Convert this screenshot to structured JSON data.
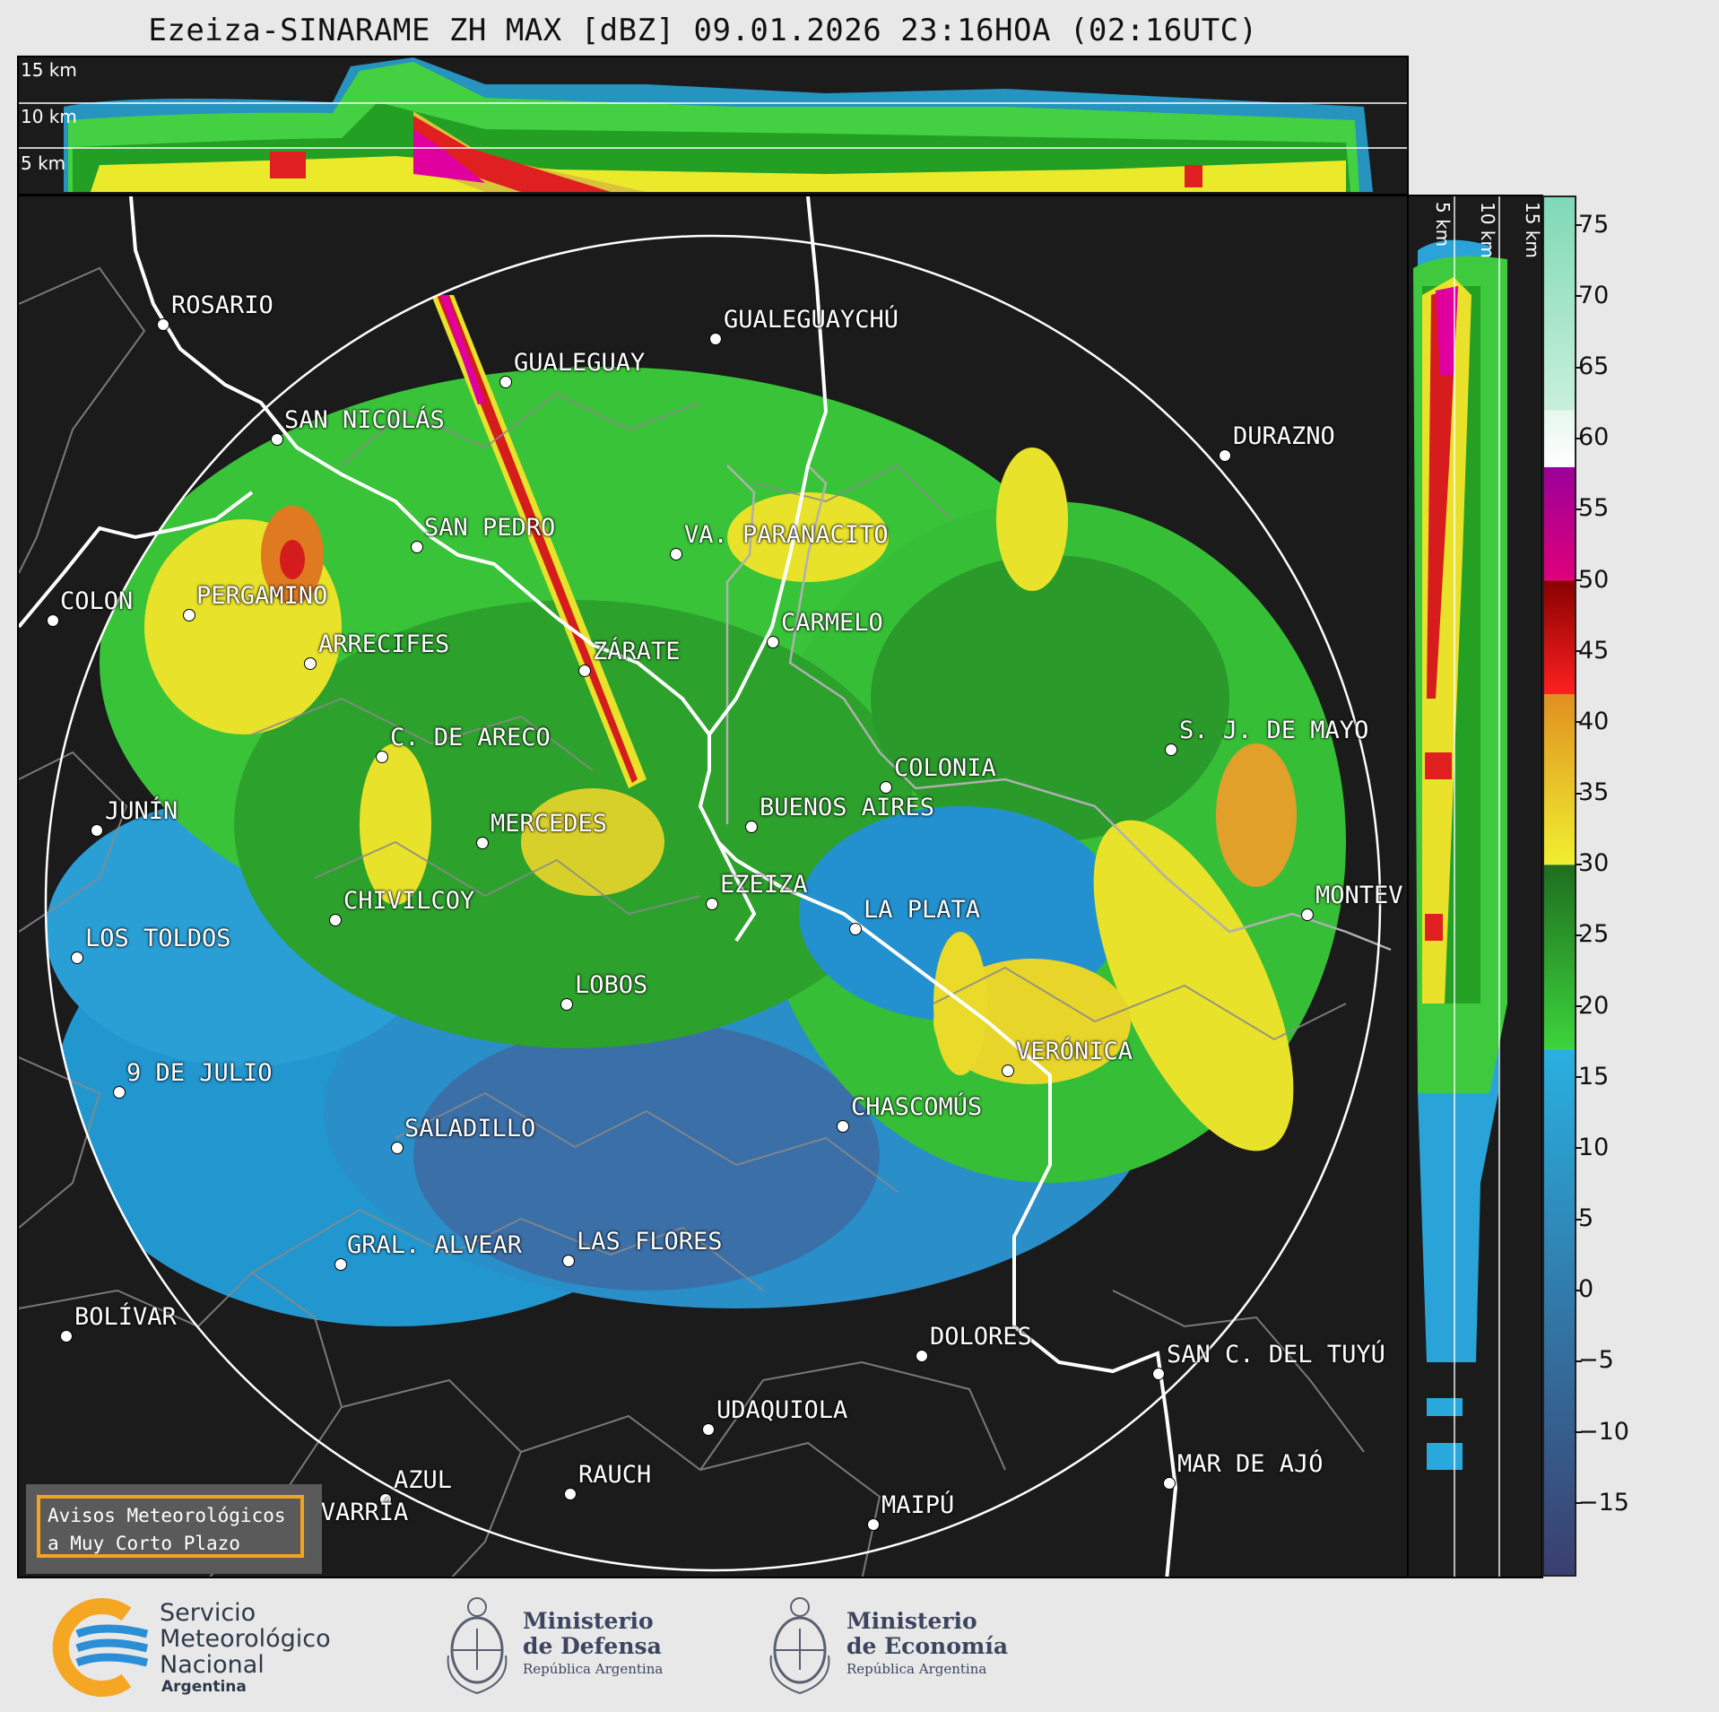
{
  "title": "Ezeiza-SINARAME ZH MAX [dBZ] 09.01.2026 23:16HOA (02:16UTC)",
  "top_panel": {
    "height_labels": [
      "15 km",
      "10 km",
      "5 km"
    ]
  },
  "side_panel": {
    "height_labels": [
      "5 km",
      "10 km",
      "15 km"
    ]
  },
  "colorbar": {
    "unit": "dBZ",
    "ticks": [
      "75",
      "70",
      "65",
      "60",
      "55",
      "50",
      "45",
      "40",
      "35",
      "30",
      "25",
      "20",
      "15",
      "10",
      "5",
      "0",
      "−5",
      "−10",
      "−15"
    ],
    "range": [
      -20,
      77
    ],
    "segments": [
      {
        "from": -20,
        "to": 17,
        "color_start": "#3a3f6e",
        "color_end": "#29b0e0"
      },
      {
        "from": 17,
        "to": 30,
        "color_start": "#3cd43c",
        "color_end": "#1f6e1f"
      },
      {
        "from": 30,
        "to": 42,
        "color_start": "#f0f030",
        "color_end": "#e09020"
      },
      {
        "from": 42,
        "to": 50,
        "color_start": "#ff2020",
        "color_end": "#8a0000"
      },
      {
        "from": 50,
        "to": 58,
        "color_start": "#e0007a",
        "color_end": "#9a009a"
      },
      {
        "from": 58,
        "to": 62,
        "color_start": "#ffffff",
        "color_end": "#e6f7ee"
      },
      {
        "from": 62,
        "to": 77,
        "color_start": "#c8f0dc",
        "color_end": "#7fd9b6"
      }
    ]
  },
  "cities": [
    {
      "name": "ROSARIO"
    },
    {
      "name": "GUALEGUAYCHÚ"
    },
    {
      "name": "GUALEGUAY"
    },
    {
      "name": "SAN NICOLÁS"
    },
    {
      "name": "DURAZNO"
    },
    {
      "name": "SAN PEDRO"
    },
    {
      "name": "VA. PARANACITO"
    },
    {
      "name": "COLON"
    },
    {
      "name": "PERGAMINO"
    },
    {
      "name": "CARMELO"
    },
    {
      "name": "ARRECIFES"
    },
    {
      "name": "ZÁRATE"
    },
    {
      "name": "S. J. DE MAYO"
    },
    {
      "name": "C. DE ARECO"
    },
    {
      "name": "COLONIA"
    },
    {
      "name": "JUNÍN"
    },
    {
      "name": "BUENOS AIRES"
    },
    {
      "name": "MERCEDES"
    },
    {
      "name": "EZEIZA"
    },
    {
      "name": "MONTEV"
    },
    {
      "name": "CHIVILCOY"
    },
    {
      "name": "LA PLATA"
    },
    {
      "name": "LOS TOLDOS"
    },
    {
      "name": "LOBOS"
    },
    {
      "name": "VERÓNICA"
    },
    {
      "name": "9 DE JULIO"
    },
    {
      "name": "CHASCOMÚS"
    },
    {
      "name": "SALADILLO"
    },
    {
      "name": "GRAL. ALVEAR"
    },
    {
      "name": "LAS FLORES"
    },
    {
      "name": "BOLÍVAR"
    },
    {
      "name": "DOLORES"
    },
    {
      "name": "SAN C. DEL TUYÚ"
    },
    {
      "name": "UDAQUIOLA"
    },
    {
      "name": "RAUCH"
    },
    {
      "name": "MAR DE AJÓ"
    },
    {
      "name": "AZUL"
    },
    {
      "name": "OLAVARRÍA"
    },
    {
      "name": "MAIPÚ"
    }
  ],
  "notice": {
    "line1": "Avisos Meteorológicos",
    "line2": "a Muy Corto Plazo"
  },
  "footer": {
    "smn": {
      "line1": "Servicio",
      "line2": "Meteorológico",
      "line3": "Nacional",
      "line4": "Argentina"
    },
    "defensa": {
      "line1": "Ministerio",
      "line2": "de Defensa",
      "line3": "República Argentina"
    },
    "economia": {
      "line1": "Ministerio",
      "line2": "de Economía",
      "line3": "República Argentina"
    }
  },
  "icons": [
    "smn-logo-icon",
    "argentina-coat-of-arms-icon"
  ]
}
